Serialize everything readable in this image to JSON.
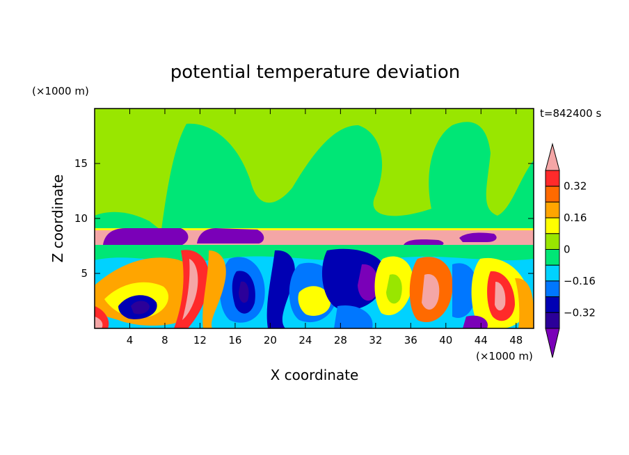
{
  "chart_data": {
    "type": "heatmap",
    "title": "potential temperature deviation",
    "time_label": "t=842400 s",
    "xlabel": "X coordinate",
    "ylabel": "Z coordinate",
    "x_unit": "(×1000 m)",
    "y_unit": "(×1000 m)",
    "xlim": [
      0,
      50
    ],
    "ylim": [
      0,
      20
    ],
    "x_ticks": [
      4,
      8,
      12,
      16,
      20,
      24,
      28,
      32,
      36,
      40,
      44,
      48
    ],
    "y_ticks": [
      5,
      10,
      15
    ],
    "colorbar": {
      "levels": [
        -0.4,
        -0.32,
        -0.24,
        -0.16,
        -0.08,
        0,
        0.08,
        0.16,
        0.24,
        0.32,
        0.4
      ],
      "labeled_levels": [
        0.32,
        0.16,
        0,
        -0.16,
        -0.32
      ],
      "colors_top_to_bottom": [
        "#f4a6a6",
        "#ff2a2a",
        "#ff6a00",
        "#ffa500",
        "#ffff00",
        "#99e600",
        "#00e676",
        "#00d2ff",
        "#0077ff",
        "#0000b3",
        "#2b0099",
        "#7a00b8"
      ]
    },
    "layers": [
      {
        "z_range": [
          9,
          20
        ],
        "description_level": 0.04
      },
      {
        "z_range": [
          7.6,
          9
        ],
        "description_level": 0.45
      },
      {
        "z_range": [
          7.6,
          9
        ],
        "description_level": -0.45
      },
      {
        "z_range": [
          0,
          7.6
        ],
        "description_level": 0
      }
    ]
  }
}
